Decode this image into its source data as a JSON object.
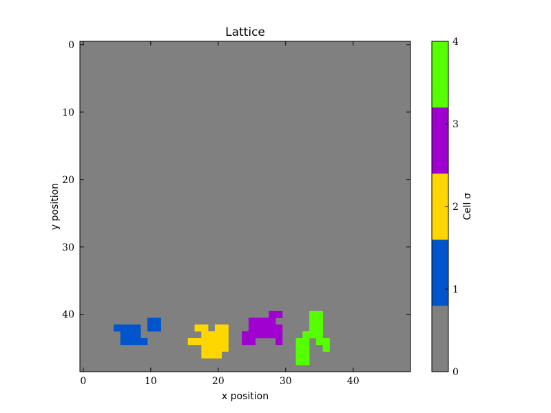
{
  "chart_data": {
    "type": "heatmap",
    "title": "Lattice",
    "xlabel": "x position",
    "ylabel": "y position",
    "xlim": [
      0,
      49
    ],
    "ylim": [
      49,
      0
    ],
    "x_ticks": [
      0,
      10,
      20,
      30,
      40
    ],
    "y_ticks": [
      0,
      10,
      20,
      30,
      40
    ],
    "y_inverted": true,
    "background_value": 0,
    "colorbar": {
      "label": "Cell σ",
      "ticks": [
        0,
        1,
        2,
        3,
        4
      ],
      "range": [
        0,
        4
      ],
      "colors": [
        "#808080",
        "#0055CC",
        "#FFD700",
        "#A000D0",
        "#55FF00"
      ]
    },
    "cells": [
      {
        "sigma": 1,
        "segments": [
          [
            10,
            41,
            2
          ],
          [
            10,
            42,
            2
          ],
          [
            5,
            42,
            4
          ],
          [
            11,
            42,
            1
          ],
          [
            7,
            43,
            2
          ],
          [
            6,
            43,
            1
          ],
          [
            6,
            44,
            4
          ]
        ]
      },
      {
        "sigma": 2,
        "segments": [
          [
            17,
            42,
            2
          ],
          [
            20,
            42,
            2
          ],
          [
            18,
            43,
            4
          ],
          [
            16,
            44,
            6
          ],
          [
            18,
            45,
            4
          ],
          [
            18,
            46,
            3
          ]
        ]
      },
      {
        "sigma": 3,
        "segments": [
          [
            28,
            40,
            2
          ],
          [
            25,
            41,
            4
          ],
          [
            29,
            41,
            0
          ],
          [
            25,
            42,
            5
          ],
          [
            24,
            43,
            6
          ],
          [
            24,
            44,
            2
          ],
          [
            29,
            44,
            1
          ]
        ]
      },
      {
        "sigma": 4,
        "segments": [
          [
            34,
            40,
            2
          ],
          [
            34,
            41,
            2
          ],
          [
            34,
            42,
            2
          ],
          [
            33,
            43,
            3
          ],
          [
            32,
            44,
            2
          ],
          [
            35,
            44,
            2
          ],
          [
            32,
            45,
            2
          ],
          [
            36,
            45,
            1
          ],
          [
            32,
            46,
            2
          ],
          [
            32,
            47,
            2
          ]
        ]
      }
    ]
  }
}
